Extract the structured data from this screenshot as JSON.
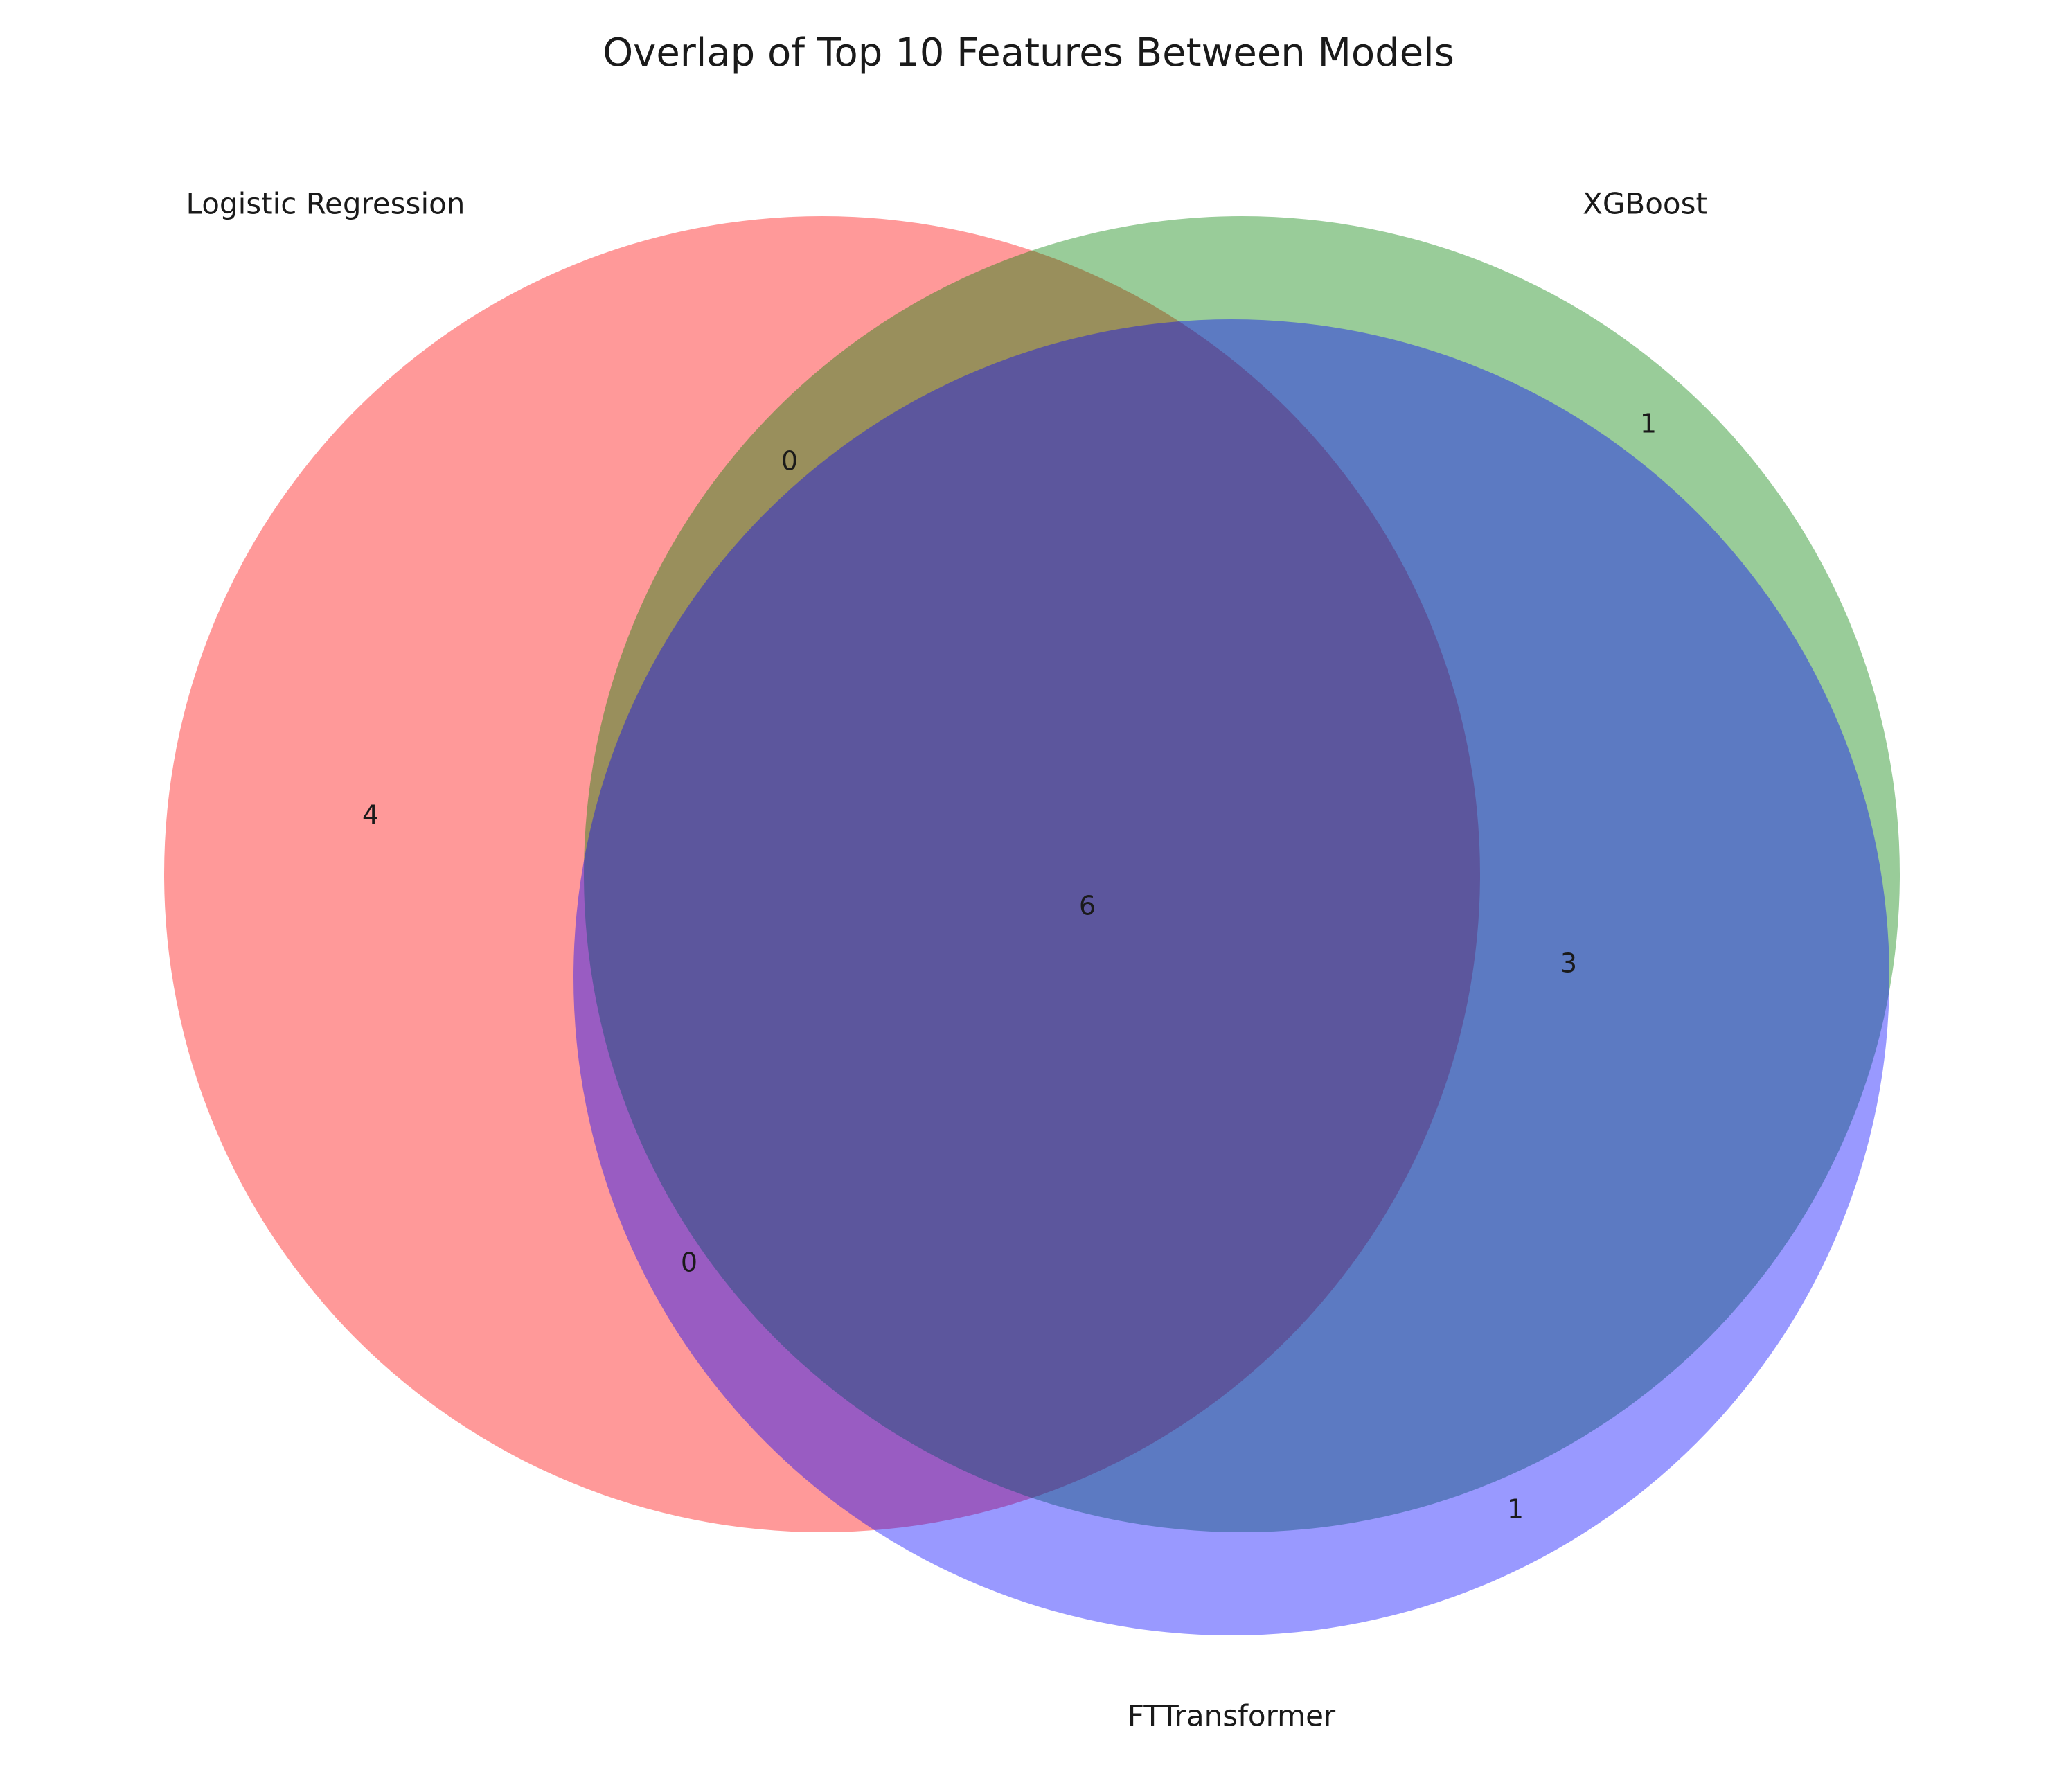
{
  "diagram": {
    "type": "venn3",
    "title": "Overlap of Top 10 Features Between Models",
    "sets": [
      {
        "id": "lr",
        "label": "Logistic Regression",
        "color": "#ff0000"
      },
      {
        "id": "xgb",
        "label": "XGBoost",
        "color": "#008000"
      },
      {
        "id": "ftt",
        "label": "FTTransformer",
        "color": "#0000ff"
      }
    ],
    "region_counts": {
      "lr_only": "4",
      "xgb_only": "1",
      "ftt_only": "1",
      "lr_xgb_only": "0",
      "lr_ftt_only": "0",
      "xgb_ftt_only": "3",
      "all_three": "6"
    },
    "fill_opacity": 0.4
  }
}
